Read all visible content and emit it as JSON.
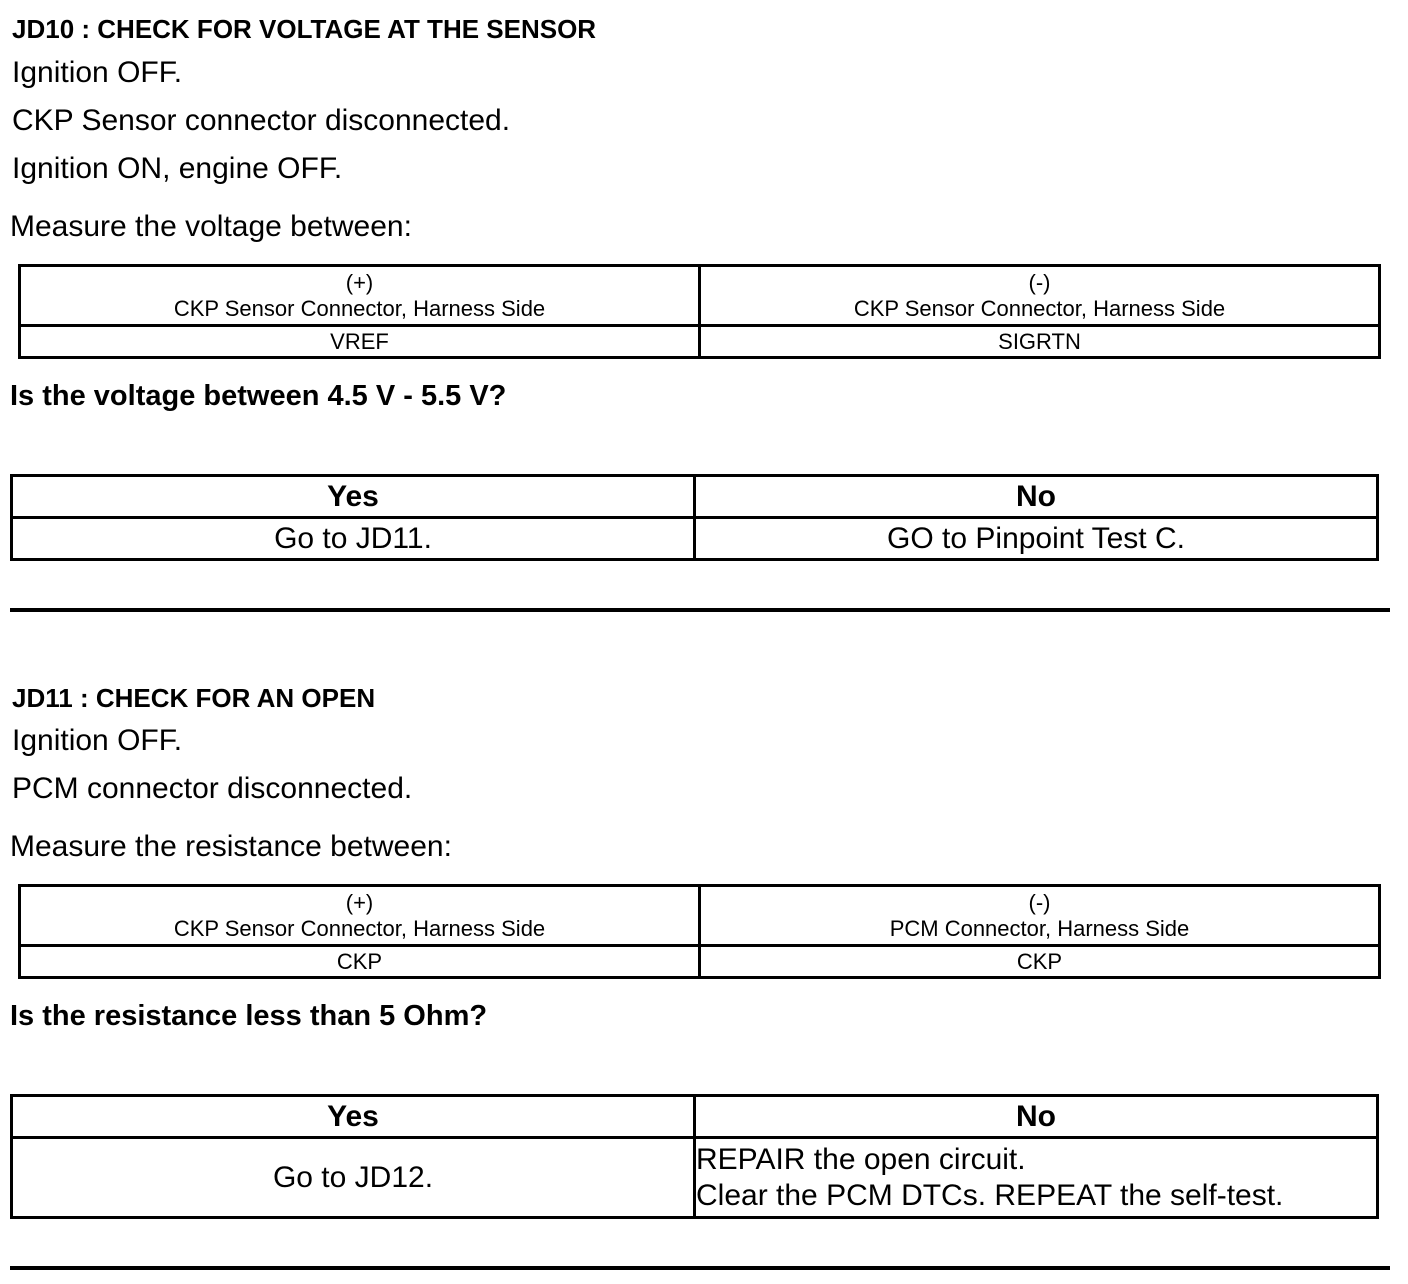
{
  "sections": [
    {
      "title": "JD10 : CHECK FOR VOLTAGE AT THE SENSOR",
      "steps": [
        "Ignition OFF.",
        "CKP Sensor connector disconnected.",
        "Ignition ON, engine OFF."
      ],
      "measure_label": "Measure the voltage between:",
      "measure_table": {
        "plus_sign": "(+)",
        "plus_header": "CKP Sensor Connector, Harness Side",
        "plus_value": "VREF",
        "minus_sign": "(-)",
        "minus_header": "CKP Sensor Connector, Harness Side",
        "minus_value": "SIGRTN"
      },
      "question": "Is the voltage between 4.5 V - 5.5 V?",
      "result_table": {
        "yes_label": "Yes",
        "no_label": "No",
        "yes_action": "Go to JD11.",
        "no_action": [
          "GO to Pinpoint Test C."
        ]
      }
    },
    {
      "title": "JD11 : CHECK FOR AN OPEN",
      "steps": [
        "Ignition OFF.",
        "PCM connector disconnected."
      ],
      "measure_label": "Measure the resistance between:",
      "measure_table": {
        "plus_sign": "(+)",
        "plus_header": "CKP Sensor Connector, Harness Side",
        "plus_value": "CKP",
        "minus_sign": "(-)",
        "minus_header": "PCM Connector, Harness Side",
        "minus_value": "CKP"
      },
      "question": "Is the resistance less than 5 Ohm?",
      "result_table": {
        "yes_label": "Yes",
        "no_label": "No",
        "yes_action": "Go to JD12.",
        "no_action": [
          "REPAIR the open circuit.",
          "Clear the PCM DTCs. REPEAT the self-test."
        ]
      }
    }
  ]
}
